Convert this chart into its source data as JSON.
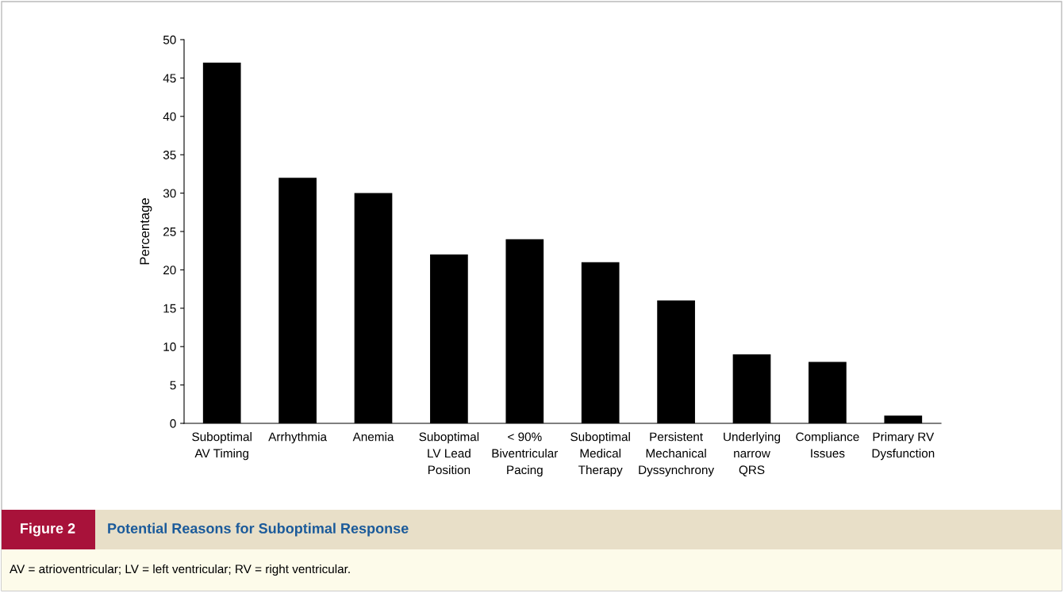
{
  "chart_data": {
    "type": "bar",
    "subtitle": "Figure 2",
    "title": "Potential Reasons for Suboptimal Response",
    "ylabel": "Percentage",
    "categories": [
      "Suboptimal\nAV Timing",
      "Arrhythmia",
      "Anemia",
      "Suboptimal\nLV Lead\nPosition",
      "< 90%\nBiventricular\nPacing",
      "Suboptimal\nMedical\nTherapy",
      "Persistent\nMechanical\nDyssynchrony",
      "Underlying\nnarrow\nQRS",
      "Compliance\nIssues",
      "Primary RV\nDysfunction"
    ],
    "values": [
      47,
      32,
      30,
      22,
      24,
      21,
      16,
      9,
      8,
      1
    ],
    "color": "#000000",
    "ylim": [
      0,
      50
    ],
    "yticks": [
      0,
      5,
      10,
      15,
      20,
      25,
      30,
      35,
      40,
      45,
      50
    ],
    "grid": false,
    "legend": false,
    "annotations": [
      "AV = atrioventricular; LV = left ventricular; RV = right ventricular."
    ]
  }
}
